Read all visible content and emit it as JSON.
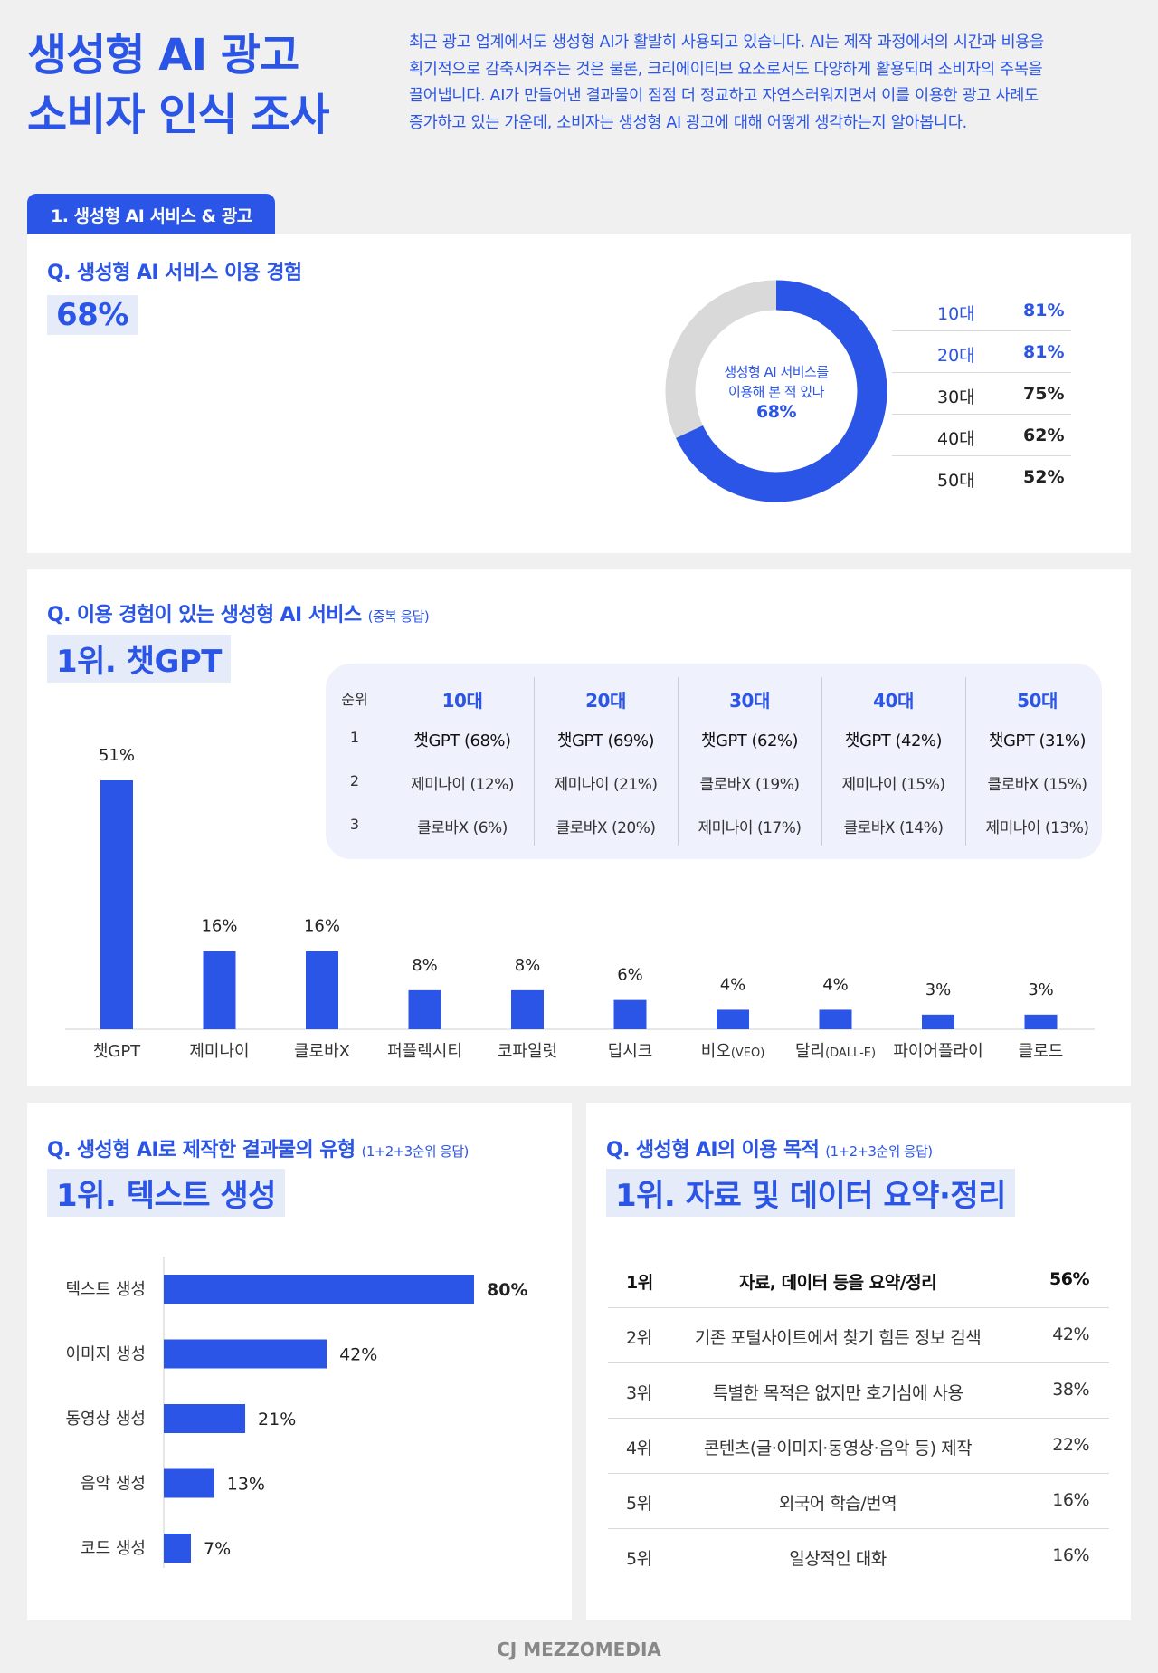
{
  "header": {
    "title_line1": "생성형 AI 광고",
    "title_line2": "소비자 인식 조사",
    "intro_lines": [
      "최근 광고 업계에서도 생성형 AI가 활발히 사용되고 있습니다. AI는 제작 과정에서의 시간과 비용을",
      "획기적으로 감축시켜주는 것은 물론, 크리에이티브 요소로서도 다양하게 활용되며 소비자의 주목을",
      "끌어냅니다. AI가 만들어낸 결과물이 점점 더 정교하고 자연스러워지면서 이를 이용한 광고 사례도",
      "증가하고 있는 가운데, 소비자는 생성형 AI 광고에 대해 어떻게 생각하는지 알아봅니다."
    ]
  },
  "section1": {
    "tab_label": "1. 생성형 AI 서비스 & 광고"
  },
  "experience": {
    "question": "Q. 생성형 AI 서비스 이용 경험",
    "highlight": "68%",
    "donut_line1": "생성형 AI 서비스를",
    "donut_line2": "이용해 본 적 있다",
    "donut_value": "68%",
    "age_rows": [
      {
        "age": "10대",
        "value": "81%"
      },
      {
        "age": "20대",
        "value": "81%"
      },
      {
        "age": "30대",
        "value": "75%"
      },
      {
        "age": "40대",
        "value": "62%"
      },
      {
        "age": "50대",
        "value": "52%"
      }
    ]
  },
  "services": {
    "question": "Q. 이용 경험이 있는 생성형 AI 서비스",
    "question_note": "(중복 응답)",
    "highlight": "1위. 챗GPT",
    "rank_header": "순위",
    "rank_numbers": [
      "1",
      "2",
      "3"
    ],
    "age_columns": [
      {
        "age": "10대",
        "r1": "챗GPT (68%)",
        "r2": "제미나이 (12%)",
        "r3": "클로바X (6%)"
      },
      {
        "age": "20대",
        "r1": "챗GPT (69%)",
        "r2": "제미나이 (21%)",
        "r3": "클로바X (20%)"
      },
      {
        "age": "30대",
        "r1": "챗GPT (62%)",
        "r2": "클로바X (19%)",
        "r3": "제미나이 (17%)"
      },
      {
        "age": "40대",
        "r1": "챗GPT (42%)",
        "r2": "제미나이 (15%)",
        "r3": "클로바X (14%)"
      },
      {
        "age": "50대",
        "r1": "챗GPT (31%)",
        "r2": "클로바X (15%)",
        "r3": "제미나이 (13%)"
      }
    ]
  },
  "types": {
    "question": "Q. 생성형 AI로 제작한 결과물의 유형",
    "question_note": "(1+2+3순위 응답)",
    "highlight": "1위. 텍스트 생성"
  },
  "purpose": {
    "question": "Q. 생성형 AI의 이용 목적",
    "question_note": "(1+2+3순위 응답)",
    "highlight": "1위. 자료 및 데이터 요약·정리",
    "rows": [
      {
        "rank": "1위",
        "text": "자료, 데이터 등을 요약/정리",
        "pct": "56%"
      },
      {
        "rank": "2위",
        "text": "기존 포털사이트에서 찾기 힘든 정보 검색",
        "pct": "42%"
      },
      {
        "rank": "3위",
        "text": "특별한 목적은 없지만 호기심에 사용",
        "pct": "38%"
      },
      {
        "rank": "4위",
        "text": "콘텐츠(글·이미지·동영상·음악 등) 제작",
        "pct": "22%"
      },
      {
        "rank": "5위",
        "text": "외국어 학습/번역",
        "pct": "16%"
      },
      {
        "rank": "5위",
        "text": "일상적인 대화",
        "pct": "16%"
      }
    ]
  },
  "footer": {
    "logo": "CJ MEZZOMEDIA"
  },
  "colors": {
    "accent": "#2b55e6",
    "highlight_bg": "#e6ebfa",
    "donut_rest": "#d9d9d9"
  },
  "chart_data": [
    {
      "type": "pie",
      "categories": [
        "생성형 AI 서비스를 이용해 본 적 있다",
        ""
      ],
      "values": [
        68,
        32
      ]
    },
    {
      "type": "bar",
      "categories": [
        "챗GPT",
        "제미나이",
        "클로바X",
        "퍼플렉시티",
        "코파일럿",
        "딥시크",
        "비오",
        "달리",
        "파이어플라이",
        "클로드"
      ],
      "category_notes": [
        "",
        "",
        "",
        "",
        "",
        "",
        "(VEO)",
        "(DALL-E)",
        "",
        ""
      ],
      "values": [
        51,
        16,
        16,
        8,
        8,
        6,
        4,
        4,
        3,
        3
      ],
      "value_labels": [
        "51%",
        "16%",
        "16%",
        "8%",
        "8%",
        "6%",
        "4%",
        "4%",
        "3%",
        "3%"
      ],
      "ylim": [
        0,
        60
      ]
    },
    {
      "type": "bar",
      "orientation": "horizontal",
      "categories": [
        "텍스트 생성",
        "이미지 생성",
        "동영상 생성",
        "음악 생성",
        "코드 생성"
      ],
      "values": [
        80,
        42,
        21,
        13,
        7
      ],
      "value_labels": [
        "80%",
        "42%",
        "21%",
        "13%",
        "7%"
      ],
      "xlim": [
        0,
        100
      ]
    }
  ]
}
